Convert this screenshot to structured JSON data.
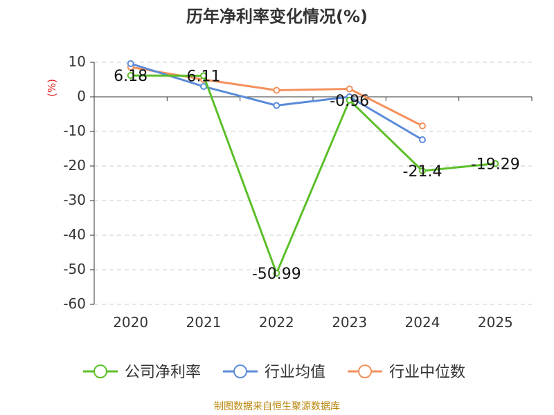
{
  "chart_data": {
    "type": "line",
    "title": "历年净利率变化情况(%)",
    "ylabel": "(%)",
    "xlabel": "",
    "categories": [
      "2020",
      "2021",
      "2022",
      "2023",
      "2024",
      "2025"
    ],
    "ylim": [
      -60,
      10
    ],
    "yticks": [
      10,
      0,
      -10,
      -20,
      -30,
      -40,
      -50,
      -60
    ],
    "grid": true,
    "legend": "bottom",
    "series": [
      {
        "name": "公司净利率",
        "color": "#5cbf2a",
        "values": [
          6.18,
          6.11,
          -50.99,
          -0.96,
          -21.4,
          -19.29
        ],
        "labels": [
          "6.18",
          "6.11",
          "-50.99",
          "-0.96",
          "-21.4",
          "-19.29"
        ]
      },
      {
        "name": "行业均值",
        "color": "#5b8bd9",
        "values": [
          9.6,
          3.0,
          -2.5,
          0.0,
          -12.4,
          null
        ]
      },
      {
        "name": "行业中位数",
        "color": "#f4915c",
        "values": [
          8.6,
          5.0,
          1.9,
          2.3,
          -8.4,
          null
        ]
      }
    ]
  },
  "source": "制图数据来自恒生聚源数据库"
}
